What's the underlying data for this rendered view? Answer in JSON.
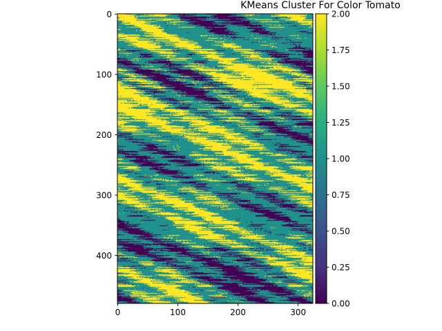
{
  "chart_data": {
    "type": "heatmap",
    "title": "KMeans Cluster For Color Tomato",
    "xlabel": "",
    "ylabel": "",
    "image_width": 325,
    "image_height": 480,
    "x_ticks": [
      0,
      100,
      200,
      300
    ],
    "y_ticks": [
      0,
      100,
      200,
      300,
      400
    ],
    "x_tick_labels": [
      "0",
      "100",
      "200",
      "300"
    ],
    "y_tick_labels": [
      "0",
      "100",
      "200",
      "300",
      "400"
    ],
    "xlim": [
      -0.5,
      324.5
    ],
    "ylim": [
      479.5,
      -0.5
    ],
    "colorbar": {
      "min": 0.0,
      "max": 2.0,
      "ticks": [
        0.0,
        0.25,
        0.5,
        0.75,
        1.0,
        1.25,
        1.5,
        1.75,
        2.0
      ],
      "tick_labels": [
        "0.00",
        "0.25",
        "0.50",
        "0.75",
        "1.00",
        "1.25",
        "1.50",
        "1.75",
        "2.00"
      ],
      "colormap": "viridis"
    },
    "cluster_colors": [
      "#440154",
      "#21918c",
      "#fde725"
    ],
    "grid": false,
    "legend": "none"
  }
}
